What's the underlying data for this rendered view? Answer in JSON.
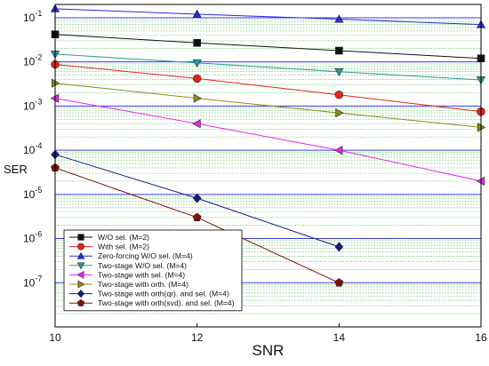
{
  "chart_data": {
    "type": "line",
    "xlabel": "SNR",
    "ylabel": "SER",
    "xlim": [
      10,
      16
    ],
    "ylim": [
      1e-08,
      0.2
    ],
    "yscale": "log",
    "grid": true,
    "legend_position": "bottom-left",
    "x_ticks": [
      "10",
      "12",
      "14",
      "16"
    ],
    "y_ticks": [
      {
        "exp": "-1",
        "value": 0.1
      },
      {
        "exp": "-2",
        "value": 0.01
      },
      {
        "exp": "-3",
        "value": 0.001
      },
      {
        "exp": "-4",
        "value": 0.0001
      },
      {
        "exp": "-5",
        "value": 1e-05
      },
      {
        "exp": "-6",
        "value": 1e-06
      },
      {
        "exp": "-7",
        "value": 1e-07
      }
    ],
    "y_tick_base": "10",
    "series": [
      {
        "name": "W/O sel. (M=2)",
        "color": "#111111",
        "marker": "square",
        "x": [
          10,
          12,
          14,
          16
        ],
        "y": [
          0.042,
          0.027,
          0.018,
          0.012
        ]
      },
      {
        "name": "With sel. (M=2)",
        "color": "#e8231a",
        "marker": "circle",
        "x": [
          10,
          12,
          14,
          16
        ],
        "y": [
          0.0088,
          0.0042,
          0.0018,
          0.00075
        ]
      },
      {
        "name": "Zero-forcing W/O sel. (M=4)",
        "color": "#2a2ae0",
        "marker": "triangle-up",
        "x": [
          10,
          12,
          14,
          16
        ],
        "y": [
          0.16,
          0.12,
          0.093,
          0.07
        ]
      },
      {
        "name": "Two-stage W/O sel. (M=4)",
        "color": "#1f9e96",
        "marker": "triangle-down",
        "x": [
          10,
          12,
          14,
          16
        ],
        "y": [
          0.015,
          0.0095,
          0.006,
          0.0039
        ]
      },
      {
        "name": "Two-stage with sel. (M=4)",
        "color": "#ee22ee",
        "marker": "triangle-left",
        "x": [
          10,
          12,
          14,
          16
        ],
        "y": [
          0.0015,
          0.0004,
          0.0001,
          2e-05
        ]
      },
      {
        "name": "Two-stage with orth. (M=4)",
        "color": "#8a8a1c",
        "marker": "triangle-right",
        "x": [
          10,
          12,
          14,
          16
        ],
        "y": [
          0.0033,
          0.0015,
          0.0007,
          0.00033
        ]
      },
      {
        "name": "Two-stage  with orth(qr). and sel. (M=4)",
        "color": "#1a1a8e",
        "marker": "diamond",
        "x": [
          10,
          12,
          14
        ],
        "y": [
          8e-05,
          8.2e-06,
          6.5e-07
        ]
      },
      {
        "name": "Two-stage  with orth(svd). and sel. (M=4)",
        "color": "#7f1010",
        "marker": "pentagon",
        "x": [
          10,
          12,
          14
        ],
        "y": [
          4e-05,
          3e-06,
          1e-07
        ]
      }
    ]
  }
}
